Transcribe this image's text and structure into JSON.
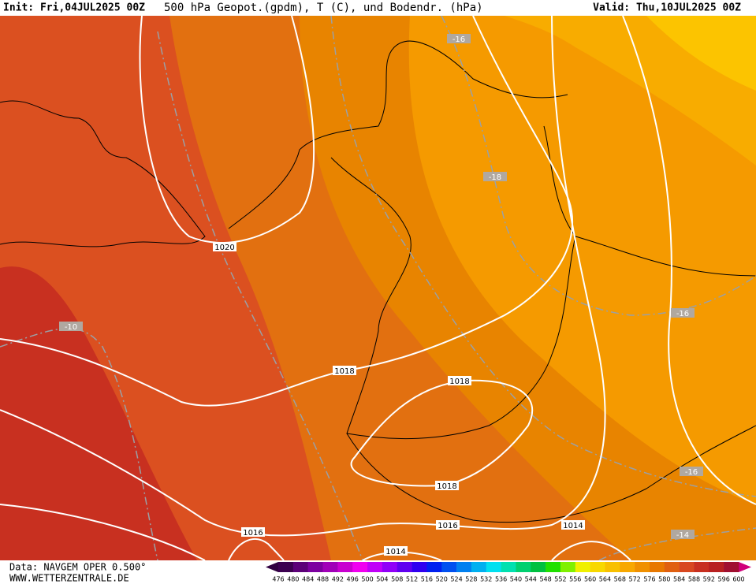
{
  "header": {
    "init": "Init: Fri,04JUL2025 00Z",
    "title": "500 hPa Geopot.(gpdm), T (C), und Bodendr. (hPa)",
    "valid": "Valid: Thu,10JUL2025 00Z"
  },
  "isobar_labels": [
    "1020",
    "1018",
    "1018",
    "1018",
    "1016",
    "1016",
    "1014",
    "1014"
  ],
  "temperature_labels": [
    "-16",
    "-18",
    "-10",
    "-16",
    "-16",
    "-14"
  ],
  "footer": {
    "data": "Data: NAVGEM OPER 0.500°",
    "site": "WWW.WETTERZENTRALE.DE"
  },
  "colorbar": {
    "labels": [
      476,
      480,
      484,
      488,
      492,
      496,
      500,
      504,
      508,
      512,
      516,
      520,
      524,
      528,
      532,
      536,
      540,
      544,
      548,
      552,
      556,
      560,
      564,
      568,
      572,
      576,
      580,
      584,
      588,
      592,
      596,
      600
    ],
    "colors": [
      "#3c0050",
      "#5c0078",
      "#7c00a0",
      "#a000b8",
      "#c800d0",
      "#f000f0",
      "#c000f8",
      "#9000f8",
      "#6000f0",
      "#3000f0",
      "#0020f0",
      "#0050f0",
      "#0080f0",
      "#00b0f0",
      "#00e0f0",
      "#00e0b0",
      "#00d070",
      "#00c040",
      "#20e000",
      "#80f000",
      "#f0f000",
      "#f8d800",
      "#f8c000",
      "#f8a800",
      "#f09000",
      "#e87800",
      "#e06010",
      "#d84820",
      "#c83020",
      "#b82020",
      "#a01030"
    ],
    "under_color": "#300040",
    "over_color": "#d0007a"
  }
}
